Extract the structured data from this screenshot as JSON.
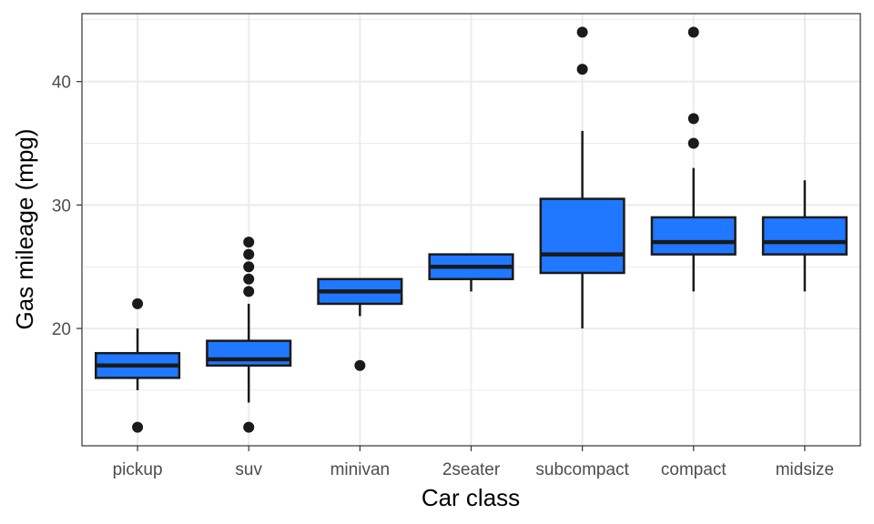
{
  "chart_data": {
    "type": "boxplot",
    "title": "",
    "xlabel": "Car class",
    "ylabel": "Gas mileage (mpg)",
    "ylim": [
      10.5,
      45.5
    ],
    "y_ticks": [
      20,
      30,
      40
    ],
    "y_tick_labels": [
      "20",
      "30",
      "40"
    ],
    "grid": true,
    "legend": "none",
    "colors": {
      "fill": "#1f78ff",
      "outline": "#1a1a1a",
      "grid": "#ebebeb",
      "border": "#333333"
    },
    "categories": [
      "pickup",
      "suv",
      "minivan",
      "2seater",
      "subcompact",
      "compact",
      "midsize"
    ],
    "boxes": [
      {
        "category": "pickup",
        "whisker_low": 15,
        "q1": 16,
        "median": 17,
        "q3": 18,
        "whisker_high": 20,
        "outliers": [
          12,
          22
        ]
      },
      {
        "category": "suv",
        "whisker_low": 14,
        "q1": 17,
        "median": 17.5,
        "q3": 19,
        "whisker_high": 22,
        "outliers": [
          12,
          23,
          24,
          25,
          26,
          27
        ]
      },
      {
        "category": "minivan",
        "whisker_low": 21,
        "q1": 22,
        "median": 23,
        "q3": 24,
        "whisker_high": 24,
        "outliers": [
          17
        ]
      },
      {
        "category": "2seater",
        "whisker_low": 23,
        "q1": 24,
        "median": 25,
        "q3": 26,
        "whisker_high": 26,
        "outliers": []
      },
      {
        "category": "subcompact",
        "whisker_low": 20,
        "q1": 24.5,
        "median": 26,
        "q3": 30.5,
        "whisker_high": 36,
        "outliers": [
          41,
          44
        ]
      },
      {
        "category": "compact",
        "whisker_low": 23,
        "q1": 26,
        "median": 27,
        "q3": 29,
        "whisker_high": 33,
        "outliers": [
          35,
          37,
          44
        ]
      },
      {
        "category": "midsize",
        "whisker_low": 23,
        "q1": 26,
        "median": 27,
        "q3": 29,
        "whisker_high": 32,
        "outliers": []
      }
    ]
  }
}
